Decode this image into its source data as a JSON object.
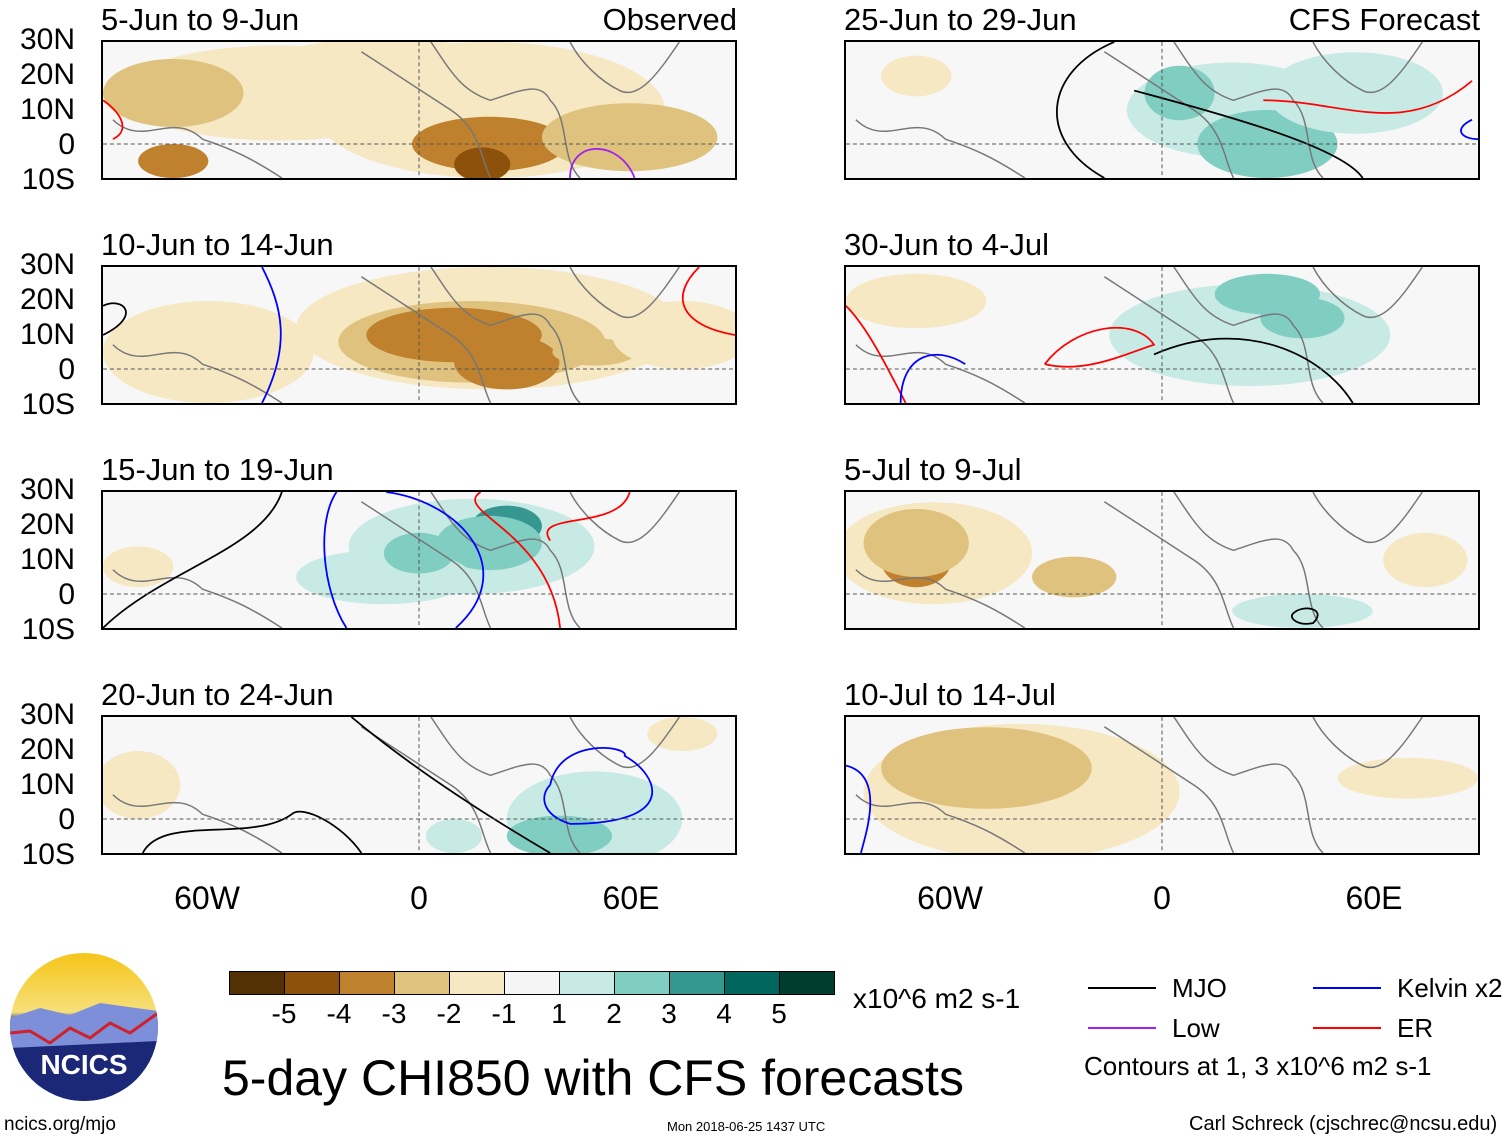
{
  "panels": [
    {
      "title": "5-Jun to 9-Jun",
      "tag": "Observed"
    },
    {
      "title": "10-Jun to 14-Jun"
    },
    {
      "title": "15-Jun to 19-Jun"
    },
    {
      "title": "20-Jun to 24-Jun"
    },
    {
      "title": "25-Jun to 29-Jun",
      "tag": "CFS Forecast"
    },
    {
      "title": "30-Jun to 4-Jul"
    },
    {
      "title": "5-Jul to 9-Jul"
    },
    {
      "title": "10-Jul to 14-Jul"
    }
  ],
  "lat_labels": [
    "30N",
    "20N",
    "10N",
    "0",
    "10S"
  ],
  "lon_labels": [
    "60W",
    "0",
    "60E"
  ],
  "colorbar": {
    "colors": [
      "#543005",
      "#8c510a",
      "#bf812d",
      "#dfc27d",
      "#f6e8c3",
      "#f5f5f5",
      "#c7eae5",
      "#80cdc1",
      "#35978f",
      "#01665e",
      "#003c30"
    ],
    "labels": [
      "-5",
      "-4",
      "-3",
      "-2",
      "-1",
      "1",
      "2",
      "3",
      "4",
      "5"
    ],
    "units": "x10^6 m2 s-1"
  },
  "legend": {
    "items": [
      {
        "label": "MJO",
        "color": "#000000"
      },
      {
        "label": "Kelvin x2",
        "color": "#0000ff"
      },
      {
        "label": "Low",
        "color": "#a020f0"
      },
      {
        "label": "ER",
        "color": "#ff0000"
      }
    ],
    "note": "Contours at 1, 3 x10^6 m2 s-1"
  },
  "main_title": "5-day CHI850 with CFS forecasts",
  "logo_text": "NCICS",
  "url": "ncics.org/mjo",
  "timestamp": "Mon 2018-06-25 1437 UTC",
  "author": "Carl Schreck (cjschrec@ncsu.edu)",
  "chart_data": {
    "type": "heatmap",
    "title": "5-day CHI850 with CFS forecasts",
    "variable": "CHI850 anomaly",
    "units": "x10^6 m2 s-1",
    "xlim": [
      -90,
      90
    ],
    "ylim": [
      -10,
      30
    ],
    "levels": [
      -5,
      -4,
      -3,
      -2,
      -1,
      1,
      2,
      3,
      4,
      5
    ],
    "contours": [
      "MJO",
      "Kelvin x2",
      "Low",
      "ER"
    ],
    "contour_levels": [
      1,
      3
    ]
  }
}
